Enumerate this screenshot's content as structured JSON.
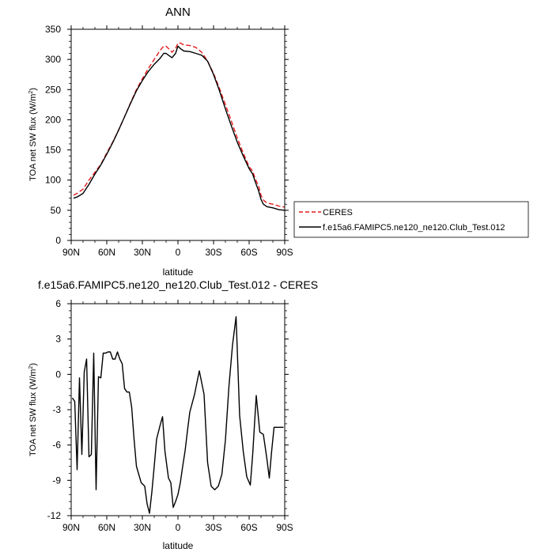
{
  "chart_data": [
    {
      "type": "line",
      "title": "ANN",
      "xlabel": "latitude",
      "ylabel": "TOA net SW flux (W/m",
      "ylabel_sup": "2",
      "ylabel_end": ")",
      "xlim": [
        90,
        -90
      ],
      "ylim": [
        0,
        350
      ],
      "xticks": [
        90,
        60,
        30,
        0,
        -30,
        -60,
        -90
      ],
      "xtick_labels": [
        "90N",
        "60N",
        "30N",
        "0",
        "30S",
        "60S",
        "90S"
      ],
      "yticks": [
        0,
        50,
        100,
        150,
        200,
        250,
        300,
        350
      ],
      "ytick_labels": [
        "0",
        "50",
        "100",
        "150",
        "200",
        "250",
        "300",
        "350"
      ],
      "legend_position": "outside-right",
      "series": [
        {
          "name": "CERES",
          "color": "#e41a1c",
          "dash": "dashed",
          "x": [
            88,
            85,
            80,
            75,
            70,
            65,
            60,
            55,
            50,
            45,
            40,
            35,
            30,
            25,
            20,
            15,
            12,
            10,
            8,
            5,
            2,
            0,
            -2,
            -5,
            -10,
            -15,
            -20,
            -25,
            -30,
            -35,
            -40,
            -45,
            -50,
            -55,
            -60,
            -63,
            -65,
            -68,
            -70,
            -72,
            -75,
            -80,
            -85,
            -90
          ],
          "y": [
            75,
            78,
            85,
            100,
            113,
            126,
            145,
            163,
            183,
            205,
            228,
            250,
            268,
            285,
            300,
            315,
            322,
            322,
            318,
            312,
            318,
            327,
            327,
            324,
            323,
            320,
            312,
            297,
            277,
            252,
            225,
            198,
            170,
            145,
            122,
            115,
            103,
            90,
            75,
            67,
            62,
            60,
            57,
            55
          ]
        },
        {
          "name": "f.e15a6.FAMIPC5.ne120_ne120.Club_Test.012",
          "color": "#000000",
          "dash": "solid",
          "x": [
            88,
            85,
            80,
            75,
            70,
            65,
            60,
            55,
            50,
            45,
            40,
            35,
            30,
            25,
            20,
            15,
            12,
            10,
            8,
            5,
            2,
            0,
            -2,
            -5,
            -10,
            -15,
            -20,
            -25,
            -30,
            -35,
            -40,
            -45,
            -50,
            -55,
            -60,
            -63,
            -65,
            -68,
            -70,
            -72,
            -75,
            -80,
            -85,
            -90
          ],
          "y": [
            70,
            72,
            78,
            93,
            110,
            125,
            143,
            162,
            183,
            205,
            227,
            248,
            265,
            280,
            292,
            302,
            310,
            310,
            307,
            303,
            310,
            322,
            318,
            314,
            313,
            310,
            307,
            297,
            275,
            248,
            218,
            190,
            163,
            140,
            119,
            110,
            98,
            82,
            68,
            60,
            56,
            54,
            51,
            50
          ]
        }
      ]
    },
    {
      "type": "line",
      "title": "f.e15a6.FAMIPC5.ne120_ne120.Club_Test.012 - CERES",
      "xlabel": "latitude",
      "ylabel": "TOA net SW flux (W/m",
      "ylabel_sup": "2",
      "ylabel_end": ")",
      "xlim": [
        90,
        -90
      ],
      "ylim": [
        -12,
        6
      ],
      "xticks": [
        90,
        60,
        30,
        0,
        -30,
        -60,
        -90
      ],
      "xtick_labels": [
        "90N",
        "60N",
        "30N",
        "0",
        "30S",
        "60S",
        "90S"
      ],
      "yticks": [
        -12,
        -9,
        -6,
        -3,
        0,
        3,
        6
      ],
      "ytick_labels": [
        "-12",
        "-9",
        "-6",
        "-3",
        "0",
        "3",
        "6"
      ],
      "series": [
        {
          "color": "#000000",
          "dash": "solid",
          "x": [
            89,
            87,
            85,
            83,
            81,
            79,
            77,
            75,
            73,
            71,
            69,
            67,
            65,
            63,
            61,
            59,
            57,
            55,
            53,
            51,
            49,
            47,
            45,
            43,
            41,
            39,
            37,
            35,
            31,
            28,
            26,
            24,
            22,
            20,
            18,
            15,
            13,
            11,
            8,
            6,
            4,
            2,
            0,
            -2,
            -4,
            -6,
            -8,
            -10,
            -14,
            -18,
            -22,
            -25,
            -28,
            -31,
            -34,
            -37,
            -40,
            -43,
            -46,
            -49,
            -52,
            -55,
            -58,
            -61,
            -63,
            -66,
            -69,
            -72,
            -75,
            -77,
            -79,
            -81,
            -83,
            -85,
            -87,
            -89
          ],
          "y": [
            -2,
            -2.3,
            -8.1,
            -0.3,
            -6.8,
            0.2,
            1.3,
            -7,
            -6.8,
            1.8,
            -9.8,
            -0.2,
            -0.3,
            1.8,
            1.8,
            1.9,
            1.9,
            1.3,
            1.3,
            1.9,
            1.3,
            0.9,
            -1.2,
            -1.5,
            -1.5,
            -2.8,
            -5.5,
            -7.8,
            -9.2,
            -9.5,
            -11,
            -11.8,
            -10,
            -7.8,
            -5.5,
            -4.3,
            -3.6,
            -6.5,
            -8.8,
            -9.2,
            -11.3,
            -10.8,
            -10.2,
            -9.2,
            -7.8,
            -6.5,
            -4.8,
            -3.2,
            -1.7,
            0.3,
            -1.7,
            -7.5,
            -9.5,
            -9.8,
            -9.5,
            -8.5,
            -5.6,
            -1,
            2.5,
            4.9,
            -3.5,
            -6.5,
            -8.7,
            -9.4,
            -6.8,
            -1.8,
            -4.9,
            -5.1,
            -7.2,
            -8.8,
            -6.5,
            -4.5,
            -4.5,
            -4.5,
            -4.5,
            -4.5
          ]
        }
      ]
    }
  ]
}
